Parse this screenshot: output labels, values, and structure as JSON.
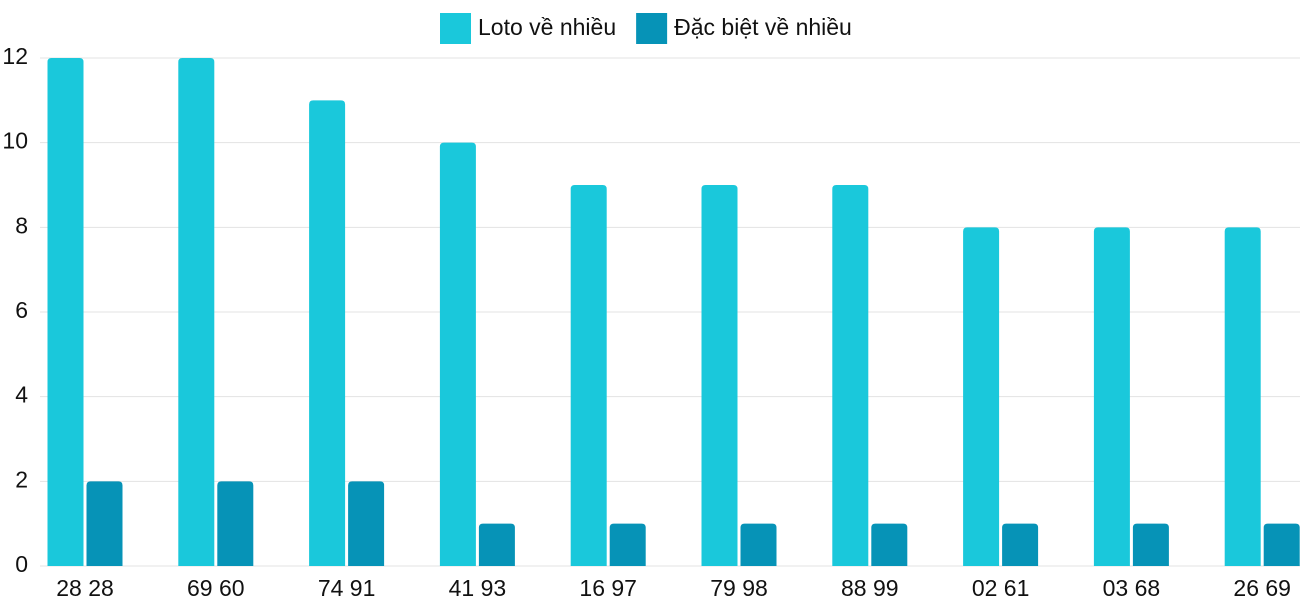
{
  "chart_data": {
    "type": "bar",
    "categories": [
      "28 28",
      "69 60",
      "74 91",
      "41 93",
      "16 97",
      "79 98",
      "88 99",
      "02 61",
      "03 68",
      "26 69"
    ],
    "series": [
      {
        "name": "Loto về nhiều",
        "color": "#1ac8db",
        "values": [
          12,
          12,
          11,
          10,
          9,
          9,
          9,
          8,
          8,
          8
        ]
      },
      {
        "name": "Đặc biệt về nhiều",
        "color": "#0693b7",
        "values": [
          2,
          2,
          2,
          1,
          1,
          1,
          1,
          1,
          1,
          1
        ]
      }
    ],
    "ylim": [
      0,
      12
    ],
    "yticks": [
      0,
      2,
      4,
      6,
      8,
      10,
      12
    ],
    "grid": true,
    "legend": "top"
  }
}
